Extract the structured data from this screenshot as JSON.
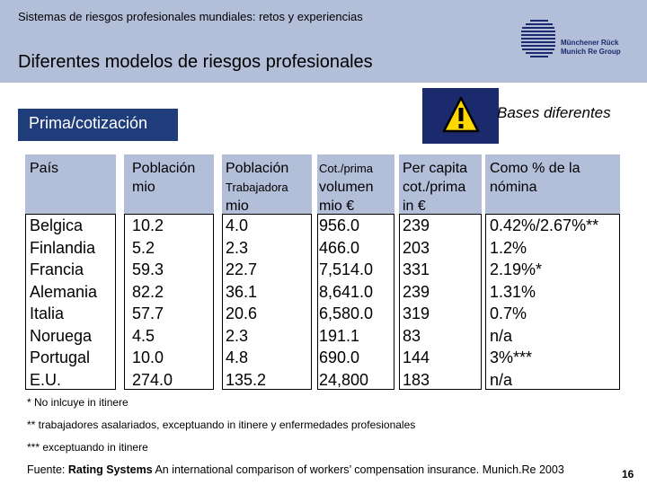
{
  "header": {
    "top_title": "Sistemas de riesgos profesionales mundiales: retos y experiencias",
    "main_title": "Diferentes modelos de riesgos profesionales",
    "logo_line1": "Münchener Rück",
    "logo_line2": "Munich Re Group"
  },
  "badge": {
    "prima": "Prima/cotización"
  },
  "warning": {
    "icon": "warning-triangle-icon",
    "label": "Bases diferentes"
  },
  "table": {
    "headers": [
      [
        "País"
      ],
      [
        "Población",
        "mio"
      ],
      [
        "Población",
        "Trabajadora",
        "mio"
      ],
      [
        "Cot./prima",
        "volumen",
        "mio €"
      ],
      [
        "Per capita",
        "cot./prima",
        "in €"
      ],
      [
        "Como % de la",
        "nómina"
      ]
    ],
    "columns": [
      [
        "Belgica",
        "Finlandia",
        "Francia",
        "Alemania",
        "Italia",
        "Noruega",
        "Portugal",
        "E.U."
      ],
      [
        "10.2",
        "5.2",
        "59.3",
        "82.2",
        "57.7",
        "4.5",
        "10.0",
        "274.0"
      ],
      [
        "4.0",
        "2.3",
        "22.7",
        "36.1",
        "20.6",
        "2.3",
        "4.8",
        "135.2"
      ],
      [
        "956.0",
        "466.0",
        "7,514.0",
        "8,641.0",
        "6,580.0",
        "191.1",
        "690.0",
        "24,800"
      ],
      [
        "239",
        "203",
        "331",
        "239",
        "319",
        "83",
        "144",
        "183"
      ],
      [
        "0.42%/2.67%**",
        "1.2%",
        "2.19%*",
        "1.31%",
        "0.7%",
        "n/a",
        "3%***",
        "n/a"
      ]
    ]
  },
  "footnotes": [
    "* No inlcuye in itinere",
    "** trabajadores asalariados, exceptuando in itinere y enfermedades profesionales",
    "*** exceptuando in itinere"
  ],
  "source": {
    "prefix": "Fuente: ",
    "bold": "Rating Systems",
    "rest": " An international comparison of workers’ compensation insurance. Munich.Re 2003",
    "page": "16"
  },
  "colors": {
    "header_band": "#b3bed9",
    "navy": "#1f3d7a",
    "warning_yellow": "#ffd800"
  }
}
